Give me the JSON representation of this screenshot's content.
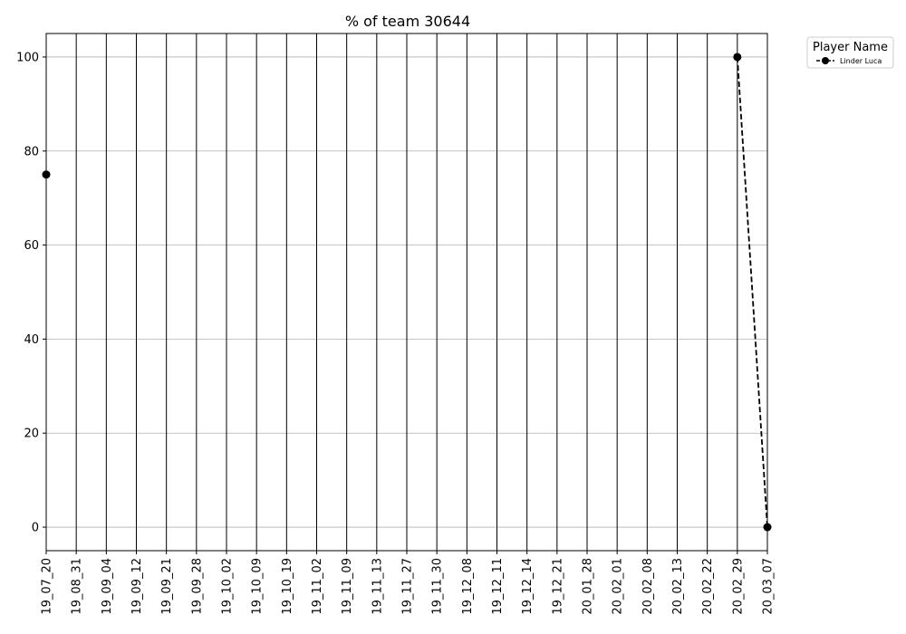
{
  "chart_data": {
    "type": "line",
    "title": "% of team 30644",
    "xlabel": "",
    "ylabel": "",
    "categories": [
      "19_07_20",
      "19_08_31",
      "19_09_04",
      "19_09_12",
      "19_09_21",
      "19_09_28",
      "19_10_02",
      "19_10_09",
      "19_10_19",
      "19_11_02",
      "19_11_09",
      "19_11_13",
      "19_11_27",
      "19_11_30",
      "19_12_08",
      "19_12_11",
      "19_12_14",
      "19_12_21",
      "20_01_28",
      "20_02_01",
      "20_02_08",
      "20_02_13",
      "20_02_22",
      "20_02_29",
      "20_03_07"
    ],
    "yticks": [
      "0",
      "20",
      "40",
      "60",
      "80",
      "100"
    ],
    "ylim": [
      -5,
      105
    ],
    "grid": "horizontal",
    "legend": {
      "title": "Player Name",
      "placement": "outside top-right"
    },
    "series": [
      {
        "name": "Linder Luca",
        "color": "#000000",
        "linestyle": "dashed",
        "marker": "circle",
        "values": [
          75,
          null,
          null,
          null,
          null,
          null,
          null,
          null,
          null,
          null,
          null,
          null,
          null,
          null,
          null,
          null,
          null,
          null,
          null,
          null,
          null,
          null,
          null,
          100,
          0
        ]
      }
    ]
  }
}
